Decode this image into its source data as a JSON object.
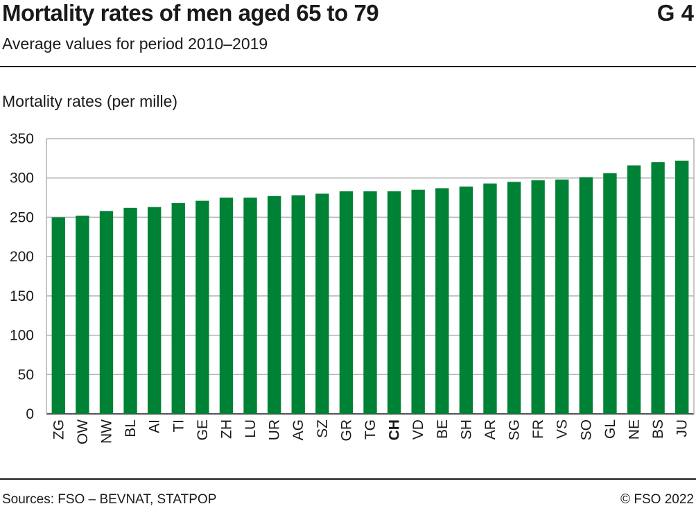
{
  "header": {
    "title": "Mortality rates of men aged 65 to 79",
    "figure_id": "G 4",
    "subtitle": "Average values for period 2010–2019"
  },
  "footer": {
    "source": "Sources: FSO – BEVNAT, STATPOP",
    "copyright": "© FSO 2022"
  },
  "colors": {
    "bar": "#008236",
    "grid": "#b3b3b3"
  },
  "chart_data": {
    "type": "bar",
    "ylabel": "Mortality rates (per mille)",
    "xlabel": "",
    "ylim": [
      0,
      350
    ],
    "yticks": [
      0,
      50,
      100,
      150,
      200,
      250,
      300,
      350
    ],
    "grid": true,
    "highlight_category": "CH",
    "categories": [
      "ZG",
      "OW",
      "NW",
      "BL",
      "AI",
      "TI",
      "GE",
      "ZH",
      "LU",
      "UR",
      "AG",
      "SZ",
      "GR",
      "TG",
      "CH",
      "VD",
      "BE",
      "SH",
      "AR",
      "SG",
      "FR",
      "VS",
      "SO",
      "GL",
      "NE",
      "BS",
      "JU"
    ],
    "values": [
      250,
      252,
      258,
      262,
      263,
      268,
      271,
      275,
      275,
      277,
      278,
      280,
      283,
      283,
      283,
      285,
      287,
      289,
      293,
      295,
      297,
      298,
      301,
      306,
      316,
      320,
      322
    ]
  }
}
